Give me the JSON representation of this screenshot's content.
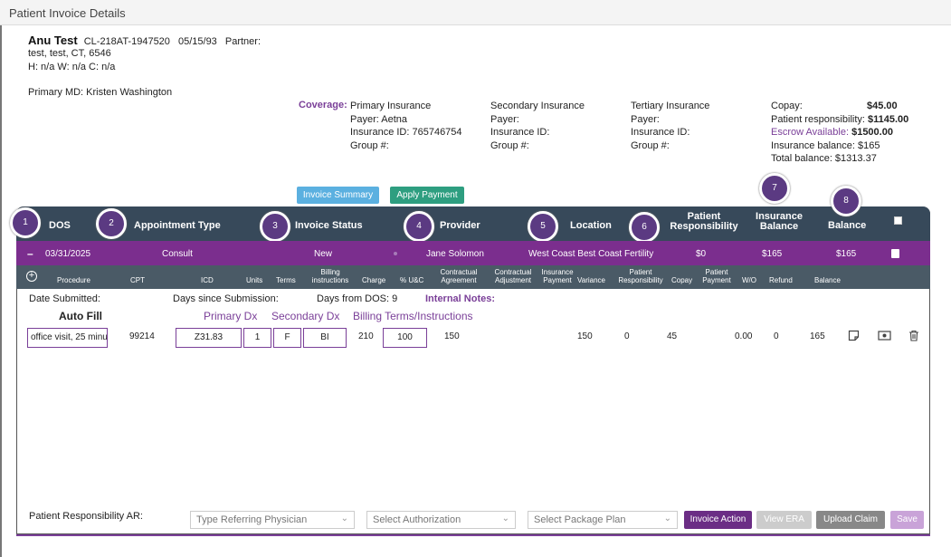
{
  "window": {
    "title": "Patient Invoice Details"
  },
  "patient": {
    "name": "Anu Test",
    "id": "CL-218AT-1947520",
    "dob": "05/15/93",
    "partner_label": "Partner:",
    "address": "test, test, CT, 6546",
    "phones": "H: n/a W: n/a C: n/a",
    "primary_md": "Primary MD: Kristen Washington"
  },
  "coverage": {
    "label": "Coverage:",
    "primary": {
      "title": "Primary Insurance",
      "payer": "Payer: Aetna",
      "insurance_id": "Insurance ID: 765746754",
      "group": "Group #:"
    },
    "secondary": {
      "title": "Secondary Insurance",
      "payer": "Payer:",
      "insurance_id": "Insurance ID:",
      "group": "Group #:"
    },
    "tertiary": {
      "title": "Tertiary Insurance",
      "payer": "Payer:",
      "insurance_id": "Insurance ID:",
      "group": "Group #:"
    }
  },
  "balances": {
    "copay_label": "Copay:",
    "copay_value": "$45.00",
    "patient_resp_label": "Patient responsibility:",
    "patient_resp_value": "$1145.00",
    "escrow_label": "Escrow Available:",
    "escrow_value": "$1500.00",
    "insurance_balance": "Insurance balance: $165",
    "total_balance": "Total balance: $1313.37"
  },
  "actions": {
    "invoice_summary": "Invoice Summary",
    "apply_payment": "Apply Payment"
  },
  "table_header": {
    "dos": "DOS",
    "appointment_type": "Appointment Type",
    "invoice_status": "Invoice Status",
    "provider": "Provider",
    "location": "Location",
    "patient_resp_1": "Patient",
    "patient_resp_2": "Responsibility",
    "insurance_bal_1": "Insurance",
    "insurance_bal_2": "Balance",
    "balance": "Balance"
  },
  "markers": [
    "1",
    "2",
    "3",
    "4",
    "5",
    "6",
    "7",
    "8"
  ],
  "invoice_row": {
    "expand": "–",
    "dos": "03/31/2025",
    "appointment_type": "Consult",
    "status": "New",
    "provider": "Jane Solomon",
    "location": "West Coast Best Coast Fertility",
    "patient_resp": "$0",
    "insurance_balance": "$165",
    "balance": "$165"
  },
  "line_header": {
    "procedure": "Procedure",
    "cpt": "CPT",
    "icd": "ICD",
    "units": "Units",
    "terms": "Terms",
    "billing_1": "Billing",
    "billing_2": "instructions",
    "charge": "Charge",
    "uc": "% U&C",
    "contractual_agreement_1": "Contractual",
    "contractual_agreement_2": "Agreement",
    "contractual_adjustment_1": "Contractual",
    "contractual_adjustment_2": "Adjustment",
    "insurance_payment_1": "Insurance",
    "insurance_payment_2": "Payment",
    "variance": "Variance",
    "patient_resp_1": "Patient",
    "patient_resp_2": "Responsibility",
    "copay": "Copay",
    "patient_payment_1": "Patient",
    "patient_payment_2": "Payment",
    "wo": "W/O",
    "refund": "Refund",
    "balance": "Balance"
  },
  "details": {
    "date_submitted": "Date Submitted:",
    "days_since": "Days since Submission:",
    "days_from_dos": "Days from DOS: 9",
    "internal_notes": "Internal Notes:",
    "auto_fill": "Auto Fill",
    "primary_dx": "Primary Dx",
    "secondary_dx": "Secondary Dx",
    "billing_terms": "Billing Terms/Instructions"
  },
  "line_item": {
    "procedure": "office visit, 25 minu",
    "cpt": "99214",
    "icd": "Z31.83",
    "units": "1",
    "terms": "F",
    "billing": "BI",
    "charge": "210",
    "uc": "100",
    "contractual_agreement": "150",
    "variance": "150",
    "patient_resp": "0",
    "copay": "45",
    "wo": "0.00",
    "refund": "0",
    "balance": "165"
  },
  "footer": {
    "patient_resp_ar": "Patient Responsibility AR:",
    "referring_physician": "Type Referring Physician",
    "authorization": "Select Authorization",
    "package_plan": "Select Package Plan",
    "invoice_action": "Invoice Action",
    "view_era": "View ERA",
    "upload_claim": "Upload Claim",
    "save": "Save"
  },
  "colors": {
    "header": "#37495a",
    "row": "#7b2e8e",
    "accent": "#7a3f98",
    "summary_btn": "#5bb0e0",
    "apply_btn": "#2e9e80"
  }
}
